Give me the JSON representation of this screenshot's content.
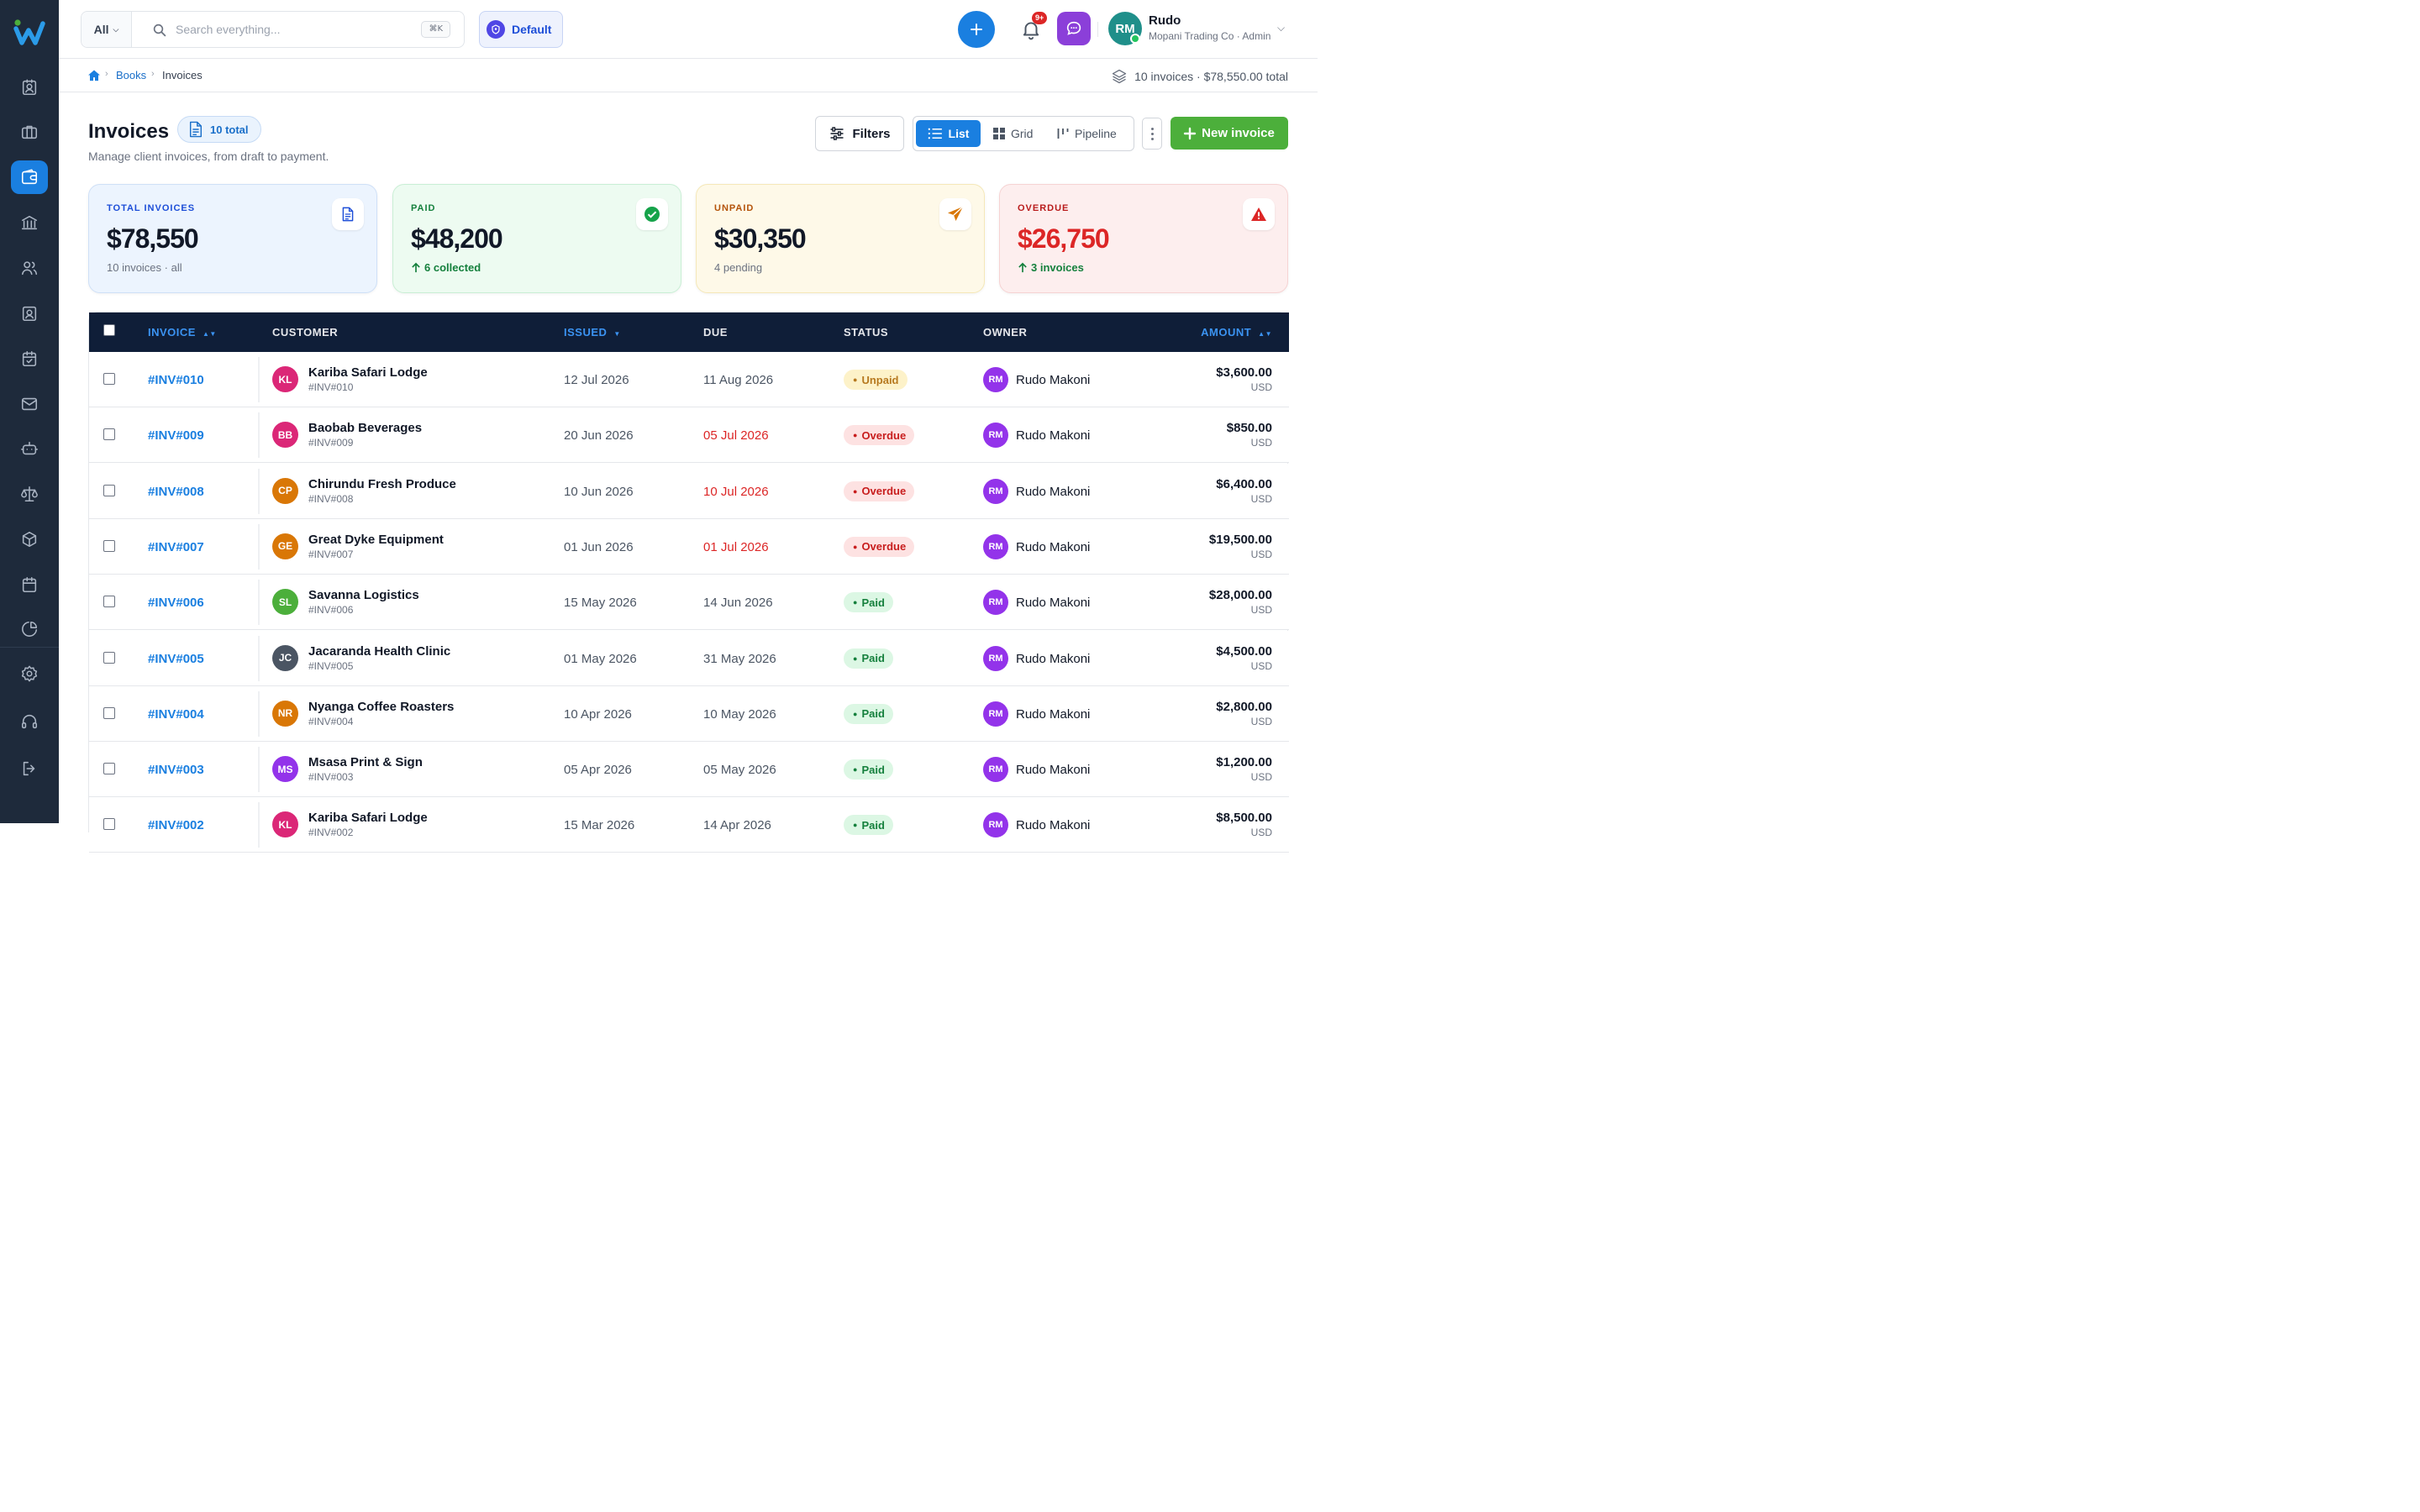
{
  "topbar": {
    "search_scope": "All",
    "search_placeholder": "Search everything...",
    "search_shortcut": "⌘K",
    "workspace": "Default",
    "notification_count": "9+",
    "user": {
      "initials": "RM",
      "name": "Rudo",
      "subtitle": "Mopani Trading Co · Admin"
    }
  },
  "breadcrumb": {
    "items": [
      "Books",
      "Invoices"
    ],
    "summary": "10 invoices · $78,550.00 total"
  },
  "page": {
    "title": "Invoices",
    "count_badge": "10 total",
    "subtitle": "Manage client invoices, from draft to payment.",
    "filters_label": "Filters",
    "views": [
      "List",
      "Grid",
      "Pipeline"
    ],
    "active_view": "List",
    "new_button": "New invoice"
  },
  "kpis": [
    {
      "label": "TOTAL INVOICES",
      "value": "$78,550",
      "note": "10 invoices · all",
      "icon": "document-icon",
      "color": "#1d4ed8"
    },
    {
      "label": "PAID",
      "value": "$48,200",
      "note": "6 collected",
      "icon": "check-circle-icon",
      "color": "#15803d"
    },
    {
      "label": "UNPAID",
      "value": "$30,350",
      "note": "4 pending",
      "icon": "send-icon",
      "color": "#b45309"
    },
    {
      "label": "OVERDUE",
      "value": "$26,750",
      "note": "3 invoices",
      "icon": "warning-icon",
      "color": "#dc2626"
    }
  ],
  "table": {
    "columns": [
      "INVOICE",
      "CUSTOMER",
      "ISSUED",
      "DUE",
      "STATUS",
      "OWNER",
      "AMOUNT"
    ],
    "rows": [
      {
        "id": "#INV#010",
        "initials": "KL",
        "customer": "Kariba Safari Lodge",
        "ref": "#INV#010",
        "issued": "12 Jul 2026",
        "due": "11 Aug 2026",
        "status": "Unpaid",
        "owner_initials": "RM",
        "owner": "Rudo Makoni",
        "amount": "$3,600.00",
        "currency": "USD"
      },
      {
        "id": "#INV#009",
        "initials": "BB",
        "customer": "Baobab Beverages",
        "ref": "#INV#009",
        "issued": "20 Jun 2026",
        "due": "05 Jul 2026",
        "status": "Overdue",
        "owner_initials": "RM",
        "owner": "Rudo Makoni",
        "amount": "$850.00",
        "currency": "USD"
      },
      {
        "id": "#INV#008",
        "initials": "CP",
        "customer": "Chirundu Fresh Produce",
        "ref": "#INV#008",
        "issued": "10 Jun 2026",
        "due": "10 Jul 2026",
        "status": "Overdue",
        "owner_initials": "RM",
        "owner": "Rudo Makoni",
        "amount": "$6,400.00",
        "currency": "USD"
      },
      {
        "id": "#INV#007",
        "initials": "GE",
        "customer": "Great Dyke Equipment",
        "ref": "#INV#007",
        "issued": "01 Jun 2026",
        "due": "01 Jul 2026",
        "status": "Overdue",
        "owner_initials": "RM",
        "owner": "Rudo Makoni",
        "amount": "$19,500.00",
        "currency": "USD"
      },
      {
        "id": "#INV#006",
        "initials": "SL",
        "customer": "Savanna Logistics",
        "ref": "#INV#006",
        "issued": "15 May 2026",
        "due": "14 Jun 2026",
        "status": "Paid",
        "owner_initials": "RM",
        "owner": "Rudo Makoni",
        "amount": "$28,000.00",
        "currency": "USD"
      },
      {
        "id": "#INV#005",
        "initials": "JC",
        "customer": "Jacaranda Health Clinic",
        "ref": "#INV#005",
        "issued": "01 May 2026",
        "due": "31 May 2026",
        "status": "Paid",
        "owner_initials": "RM",
        "owner": "Rudo Makoni",
        "amount": "$4,500.00",
        "currency": "USD"
      },
      {
        "id": "#INV#004",
        "initials": "NR",
        "customer": "Nyanga Coffee Roasters",
        "ref": "#INV#004",
        "issued": "10 Apr 2026",
        "due": "10 May 2026",
        "status": "Paid",
        "owner_initials": "RM",
        "owner": "Rudo Makoni",
        "amount": "$2,800.00",
        "currency": "USD"
      },
      {
        "id": "#INV#003",
        "initials": "MS",
        "customer": "Msasa Print & Sign",
        "ref": "#INV#003",
        "issued": "05 Apr 2026",
        "due": "05 May 2026",
        "status": "Paid",
        "owner_initials": "RM",
        "owner": "Rudo Makoni",
        "amount": "$1,200.00",
        "currency": "USD"
      },
      {
        "id": "#INV#002",
        "initials": "KL",
        "customer": "Kariba Safari Lodge",
        "ref": "#INV#002",
        "issued": "15 Mar 2026",
        "due": "14 Apr 2026",
        "status": "Paid",
        "owner_initials": "RM",
        "owner": "Rudo Makoni",
        "amount": "$8,500.00",
        "currency": "USD"
      }
    ]
  },
  "colors": {
    "accent": "#1a7fe0",
    "sidebar": "#1e2a3b",
    "success": "#4caf3b",
    "danger": "#dc2626",
    "avatars": {
      "KL": "#db2777",
      "BB": "#db2777",
      "CP": "#d97706",
      "GE": "#d97706",
      "SL": "#4caf3b",
      "JC": "#4b5563",
      "NR": "#d97706",
      "MS": "#9333ea"
    }
  }
}
